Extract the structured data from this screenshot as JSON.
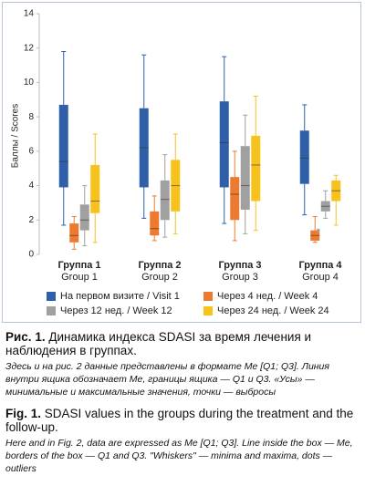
{
  "chart_data": {
    "type": "box",
    "ylabel": "Баллы / Scores",
    "ylim": [
      0,
      14
    ],
    "yticks": [
      0,
      2,
      4,
      6,
      8,
      10,
      12,
      14
    ],
    "grid": false,
    "categories": [
      "Группа 1",
      "Группа 2",
      "Группа 3",
      "Группа 4"
    ],
    "categories_en": [
      "Group 1",
      "Group 2",
      "Group 3",
      "Group 4"
    ],
    "series": [
      {
        "name": "На первом визите / Visit 1",
        "color": "#2e5fa8",
        "values": [
          {
            "min": 1.7,
            "q1": 3.9,
            "median": 5.4,
            "q3": 8.7,
            "max": 11.8
          },
          {
            "min": 2.1,
            "q1": 3.9,
            "median": 6.2,
            "q3": 8.5,
            "max": 11.6
          },
          {
            "min": 1.8,
            "q1": 3.9,
            "median": 6.5,
            "q3": 8.9,
            "max": 11.5
          },
          {
            "min": 2.3,
            "q1": 4.1,
            "median": 5.6,
            "q3": 7.2,
            "max": 8.7
          }
        ]
      },
      {
        "name": "Через 4 нед. / Week 4",
        "color": "#ec7a30",
        "values": [
          {
            "min": 0.3,
            "q1": 0.7,
            "median": 1.1,
            "q3": 1.8,
            "max": 2.2
          },
          {
            "min": 0.8,
            "q1": 1.1,
            "median": 1.5,
            "q3": 2.5,
            "max": 3.4
          },
          {
            "min": 0.8,
            "q1": 2.0,
            "median": 3.5,
            "q3": 4.5,
            "max": 6.0
          },
          {
            "min": 0.7,
            "q1": 0.8,
            "median": 1.1,
            "q3": 1.4,
            "max": 2.2
          }
        ]
      },
      {
        "name": "Через 12 нед. / Week 12",
        "color": "#a0a0a0",
        "values": [
          {
            "min": 0.5,
            "q1": 1.4,
            "median": 2.0,
            "q3": 2.9,
            "max": 4.0
          },
          {
            "min": 1.0,
            "q1": 2.0,
            "median": 3.2,
            "q3": 4.3,
            "max": 5.8
          },
          {
            "min": 1.2,
            "q1": 2.6,
            "median": 4.0,
            "q3": 6.3,
            "max": 8.1
          },
          {
            "min": 2.1,
            "q1": 2.5,
            "median": 2.8,
            "q3": 3.1,
            "max": 3.7
          }
        ],
        "outliers": [
          [],
          [],
          [],
          [
            1.4
          ]
        ]
      },
      {
        "name": "Через 24 нед. / Week 24",
        "color": "#f7c21c",
        "values": [
          {
            "min": 0.7,
            "q1": 2.4,
            "median": 3.1,
            "q3": 5.2,
            "max": 7.0
          },
          {
            "min": 1.2,
            "q1": 2.5,
            "median": 4.0,
            "q3": 5.5,
            "max": 7.0
          },
          {
            "min": 1.4,
            "q1": 3.1,
            "median": 5.2,
            "q3": 6.9,
            "max": 9.2
          },
          {
            "min": 1.7,
            "q1": 3.1,
            "median": 3.7,
            "q3": 4.3,
            "max": 4.6
          }
        ]
      }
    ]
  },
  "caption": {
    "ru_label": "Рис. 1.",
    "ru_title": "Динамика индекса SDASI за время лечения и наблюдения в группах.",
    "ru_note": "Здесь и на рис. 2 данные представлены в формате Me [Q1; Q3]. Линия внутри ящика обозначает Me, границы ящика — Q1 и Q3. «Усы» — минимальные и максимальные значения, точки — выбросы",
    "en_label": "Fig. 1.",
    "en_title": "SDASI values in the groups during the treatment and the follow-up.",
    "en_note": "Here and in Fig. 2, data are expressed as Me [Q1; Q3]. Line inside the box — Me, borders of the box — Q1 and Q3. \"Whiskers\" — minima and maxima, dots — outliers"
  }
}
